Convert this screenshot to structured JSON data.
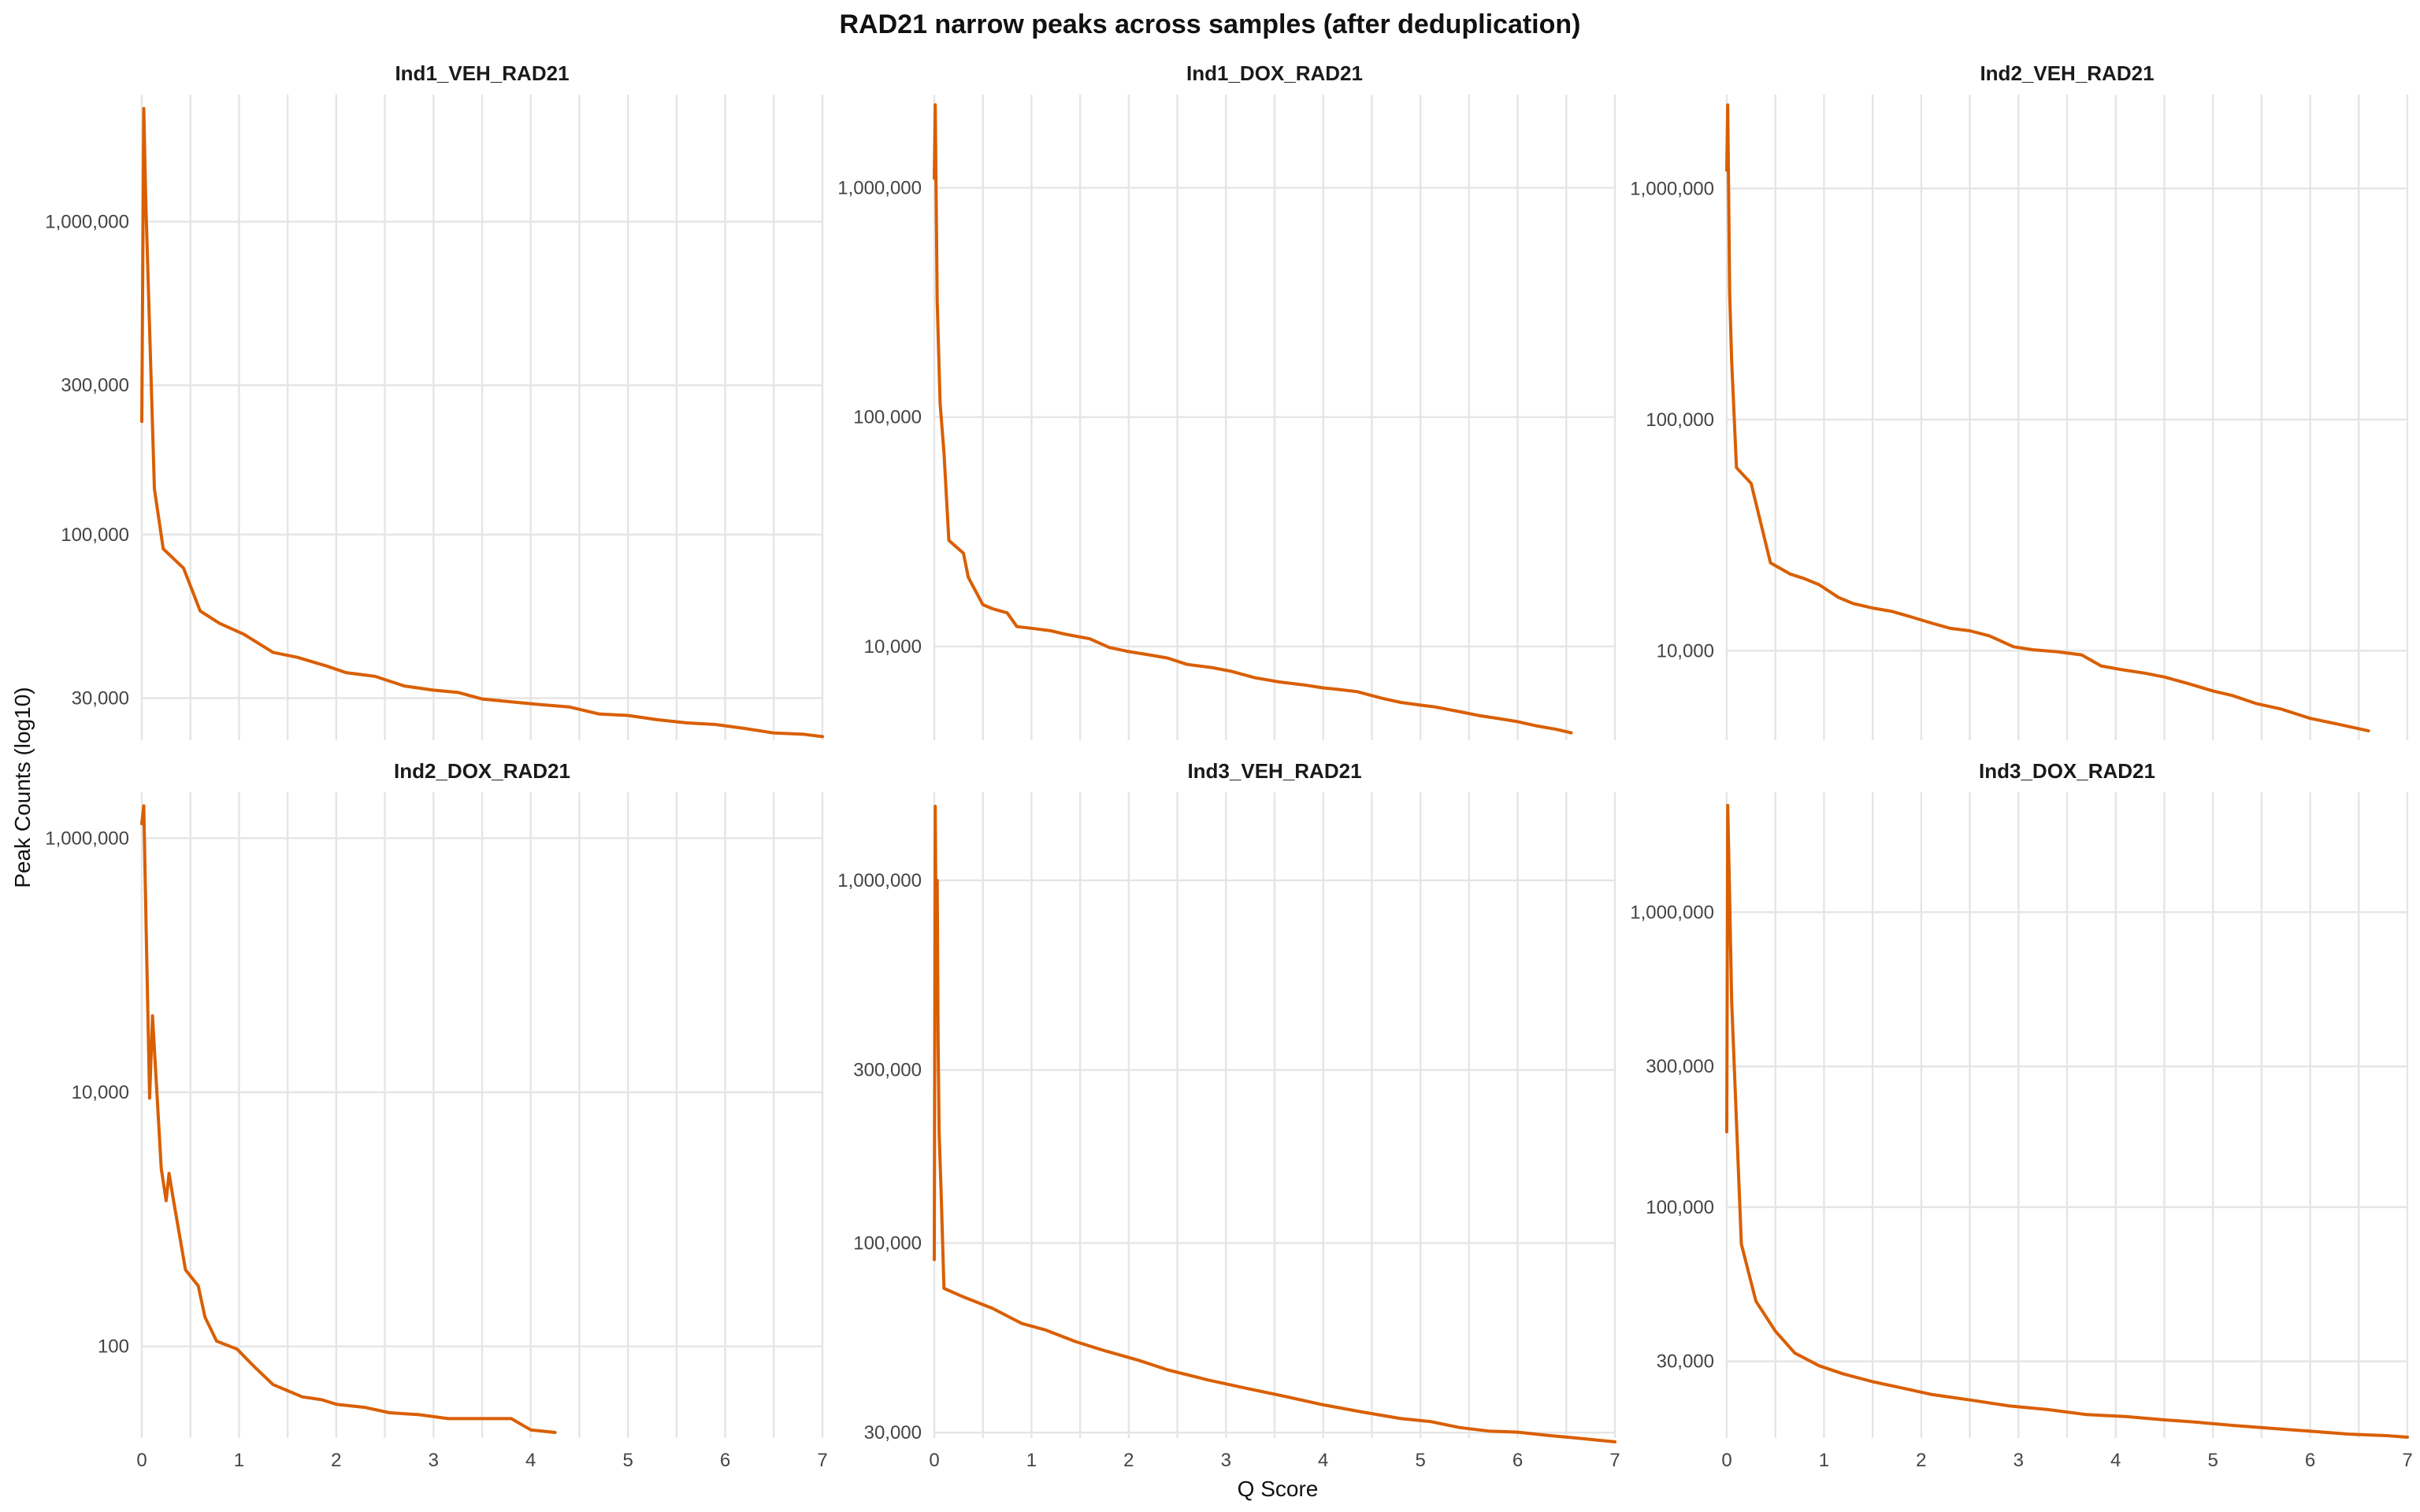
{
  "chart_data": {
    "type": "line",
    "title": "RAD21 narrow peaks across samples (after deduplication)",
    "xlabel": "Q Score",
    "ylabel": "Peak Counts (log10)",
    "y_scale": "log10",
    "grid": true,
    "legend": "none",
    "line_color": "#d95f02",
    "x_ticks": [
      "0",
      "1",
      "2",
      "3",
      "4",
      "5",
      "6",
      "7"
    ],
    "xlim": [
      0,
      7
    ],
    "panels": [
      {
        "name": "Ind1_VEH_RAD21",
        "ylim": [
          22000,
          2550000
        ],
        "y_ticks": [
          {
            "v": 30000,
            "label": "30,000"
          },
          {
            "v": 100000,
            "label": "100,000"
          },
          {
            "v": 300000,
            "label": "300,000"
          },
          {
            "v": 1000000,
            "label": "1,000,000"
          }
        ],
        "x": [
          0,
          0.02,
          0.04,
          0.13,
          0.22,
          0.43,
          0.6,
          0.8,
          1.05,
          1.35,
          1.6,
          1.9,
          2.1,
          2.4,
          2.7,
          3.0,
          3.25,
          3.5,
          3.8,
          4.1,
          4.4,
          4.7,
          5.0,
          5.3,
          5.6,
          5.9,
          6.2,
          6.5,
          6.8,
          7.0
        ],
        "y": [
          230000,
          2300000,
          1200000,
          140000,
          90000,
          78000,
          57000,
          52000,
          48000,
          42000,
          40500,
          38000,
          36200,
          35200,
          32800,
          31800,
          31300,
          29800,
          29200,
          28600,
          28100,
          26700,
          26400,
          25600,
          25000,
          24700,
          24000,
          23200,
          23000,
          22600
        ]
      },
      {
        "name": "Ind1_DOX_RAD21",
        "ylim": [
          3900,
          2550000
        ],
        "y_ticks": [
          {
            "v": 10000,
            "label": "10,000"
          },
          {
            "v": 100000,
            "label": "100,000"
          },
          {
            "v": 1000000,
            "label": "1,000,000"
          }
        ],
        "x": [
          0,
          0.01,
          0.03,
          0.06,
          0.1,
          0.15,
          0.3,
          0.35,
          0.5,
          0.6,
          0.75,
          0.85,
          1.0,
          1.2,
          1.35,
          1.6,
          1.8,
          2.0,
          2.2,
          2.4,
          2.6,
          2.85,
          3.05,
          3.3,
          3.55,
          3.8,
          4.0,
          4.15,
          4.35,
          4.6,
          4.8,
          5.0,
          5.15,
          5.4,
          5.6,
          5.8,
          6.0,
          6.2,
          6.4,
          6.55
        ],
        "y": [
          1100000,
          2300000,
          320000,
          115000,
          70000,
          29000,
          25500,
          20000,
          15200,
          14600,
          14000,
          12200,
          12000,
          11700,
          11300,
          10800,
          9900,
          9500,
          9200,
          8900,
          8350,
          8100,
          7800,
          7300,
          7000,
          6800,
          6600,
          6500,
          6350,
          5950,
          5700,
          5550,
          5450,
          5200,
          5000,
          4850,
          4700,
          4500,
          4350,
          4200
        ]
      },
      {
        "name": "Ind2_VEH_RAD21",
        "ylim": [
          4100,
          2550000
        ],
        "y_ticks": [
          {
            "v": 10000,
            "label": "10,000"
          },
          {
            "v": 100000,
            "label": "100,000"
          },
          {
            "v": 1000000,
            "label": "1,000,000"
          }
        ],
        "x": [
          0,
          0.01,
          0.03,
          0.05,
          0.1,
          0.25,
          0.45,
          0.65,
          0.8,
          0.95,
          1.15,
          1.3,
          1.5,
          1.7,
          1.9,
          2.1,
          2.3,
          2.5,
          2.7,
          2.95,
          3.15,
          3.4,
          3.65,
          3.85,
          4.05,
          4.3,
          4.5,
          4.75,
          5.0,
          5.2,
          5.45,
          5.7,
          6.0,
          6.3,
          6.6
        ],
        "y": [
          1200000,
          2300000,
          350000,
          180000,
          62000,
          53000,
          24000,
          21500,
          20500,
          19300,
          17000,
          16000,
          15300,
          14800,
          14000,
          13200,
          12500,
          12200,
          11600,
          10400,
          10100,
          9900,
          9600,
          8600,
          8300,
          8000,
          7700,
          7200,
          6700,
          6400,
          5900,
          5600,
          5100,
          4800,
          4500
        ]
      },
      {
        "name": "Ind2_DOX_RAD21",
        "ylim": [
          19,
          2300000
        ],
        "y_ticks": [
          {
            "v": 100,
            "label": "100"
          },
          {
            "v": 10000,
            "label": "10,000"
          },
          {
            "v": 1000000,
            "label": "1,000,000"
          }
        ],
        "x": [
          0,
          0.02,
          0.05,
          0.08,
          0.11,
          0.2,
          0.25,
          0.28,
          0.32,
          0.45,
          0.58,
          0.65,
          0.77,
          0.98,
          1.15,
          1.35,
          1.65,
          1.85,
          2.0,
          2.3,
          2.55,
          2.85,
          3.15,
          3.6,
          3.8,
          4.0,
          4.25
        ],
        "y": [
          1300000,
          1800000,
          120000,
          9000,
          40000,
          2500,
          1400,
          2300,
          1500,
          400,
          300,
          170,
          110,
          95,
          70,
          50,
          40,
          38,
          35,
          33,
          30,
          29,
          27,
          27,
          27,
          22,
          21
        ]
      },
      {
        "name": "Ind3_VEH_RAD21",
        "ylim": [
          29000,
          1750000
        ],
        "y_ticks": [
          {
            "v": 30000,
            "label": "30,000"
          },
          {
            "v": 100000,
            "label": "100,000"
          },
          {
            "v": 300000,
            "label": "300,000"
          },
          {
            "v": 1000000,
            "label": "1,000,000"
          }
        ],
        "x": [
          0,
          0.01,
          0.02,
          0.03,
          0.04,
          0.05,
          0.07,
          0.1,
          0.3,
          0.6,
          0.9,
          1.15,
          1.45,
          1.75,
          2.1,
          2.4,
          2.8,
          3.2,
          3.6,
          4.0,
          4.4,
          4.8,
          5.1,
          5.4,
          5.7,
          6.0,
          6.3,
          6.6,
          7.0
        ],
        "y": [
          90000,
          1600000,
          600000,
          1000000,
          350000,
          200000,
          140000,
          75000,
          71000,
          66000,
          60000,
          57500,
          53500,
          50500,
          47500,
          44700,
          42000,
          39800,
          37800,
          35800,
          34200,
          32800,
          32200,
          31000,
          30300,
          30100,
          29500,
          29000,
          28300
        ]
      },
      {
        "name": "Ind3_DOX_RAD21",
        "ylim": [
          16500,
          2550000
        ],
        "y_ticks": [
          {
            "v": 30000,
            "label": "30,000"
          },
          {
            "v": 100000,
            "label": "100,000"
          },
          {
            "v": 300000,
            "label": "300,000"
          },
          {
            "v": 1000000,
            "label": "1,000,000"
          }
        ],
        "x": [
          0,
          0.01,
          0.03,
          0.05,
          0.15,
          0.3,
          0.5,
          0.7,
          0.95,
          1.2,
          1.5,
          1.8,
          2.1,
          2.5,
          2.9,
          3.3,
          3.7,
          4.1,
          4.5,
          4.8,
          5.2,
          5.6,
          6.0,
          6.4,
          6.8,
          7.0
        ],
        "y": [
          180000,
          2300000,
          1100000,
          500000,
          75000,
          48000,
          38000,
          32000,
          29000,
          27200,
          25600,
          24400,
          23200,
          22200,
          21200,
          20600,
          19800,
          19500,
          19000,
          18700,
          18200,
          17800,
          17400,
          17000,
          16800,
          16600
        ]
      }
    ]
  }
}
